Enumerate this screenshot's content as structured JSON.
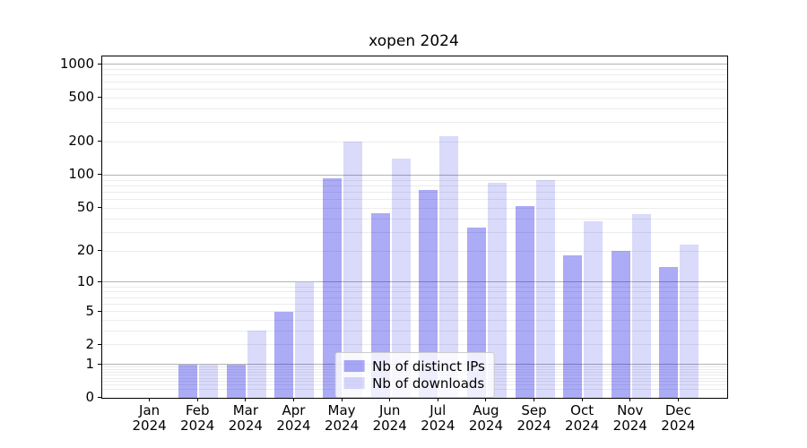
{
  "title": "xopen 2024",
  "chart_data": {
    "type": "bar",
    "title": "xopen 2024",
    "categories": [
      "Jan 2024",
      "Feb 2024",
      "Mar 2024",
      "Apr 2024",
      "May 2024",
      "Jun 2024",
      "Jul 2024",
      "Aug 2024",
      "Sep 2024",
      "Oct 2024",
      "Nov 2024",
      "Dec 2024"
    ],
    "series": [
      {
        "name": "Nb of distinct IPs",
        "color": "rgba(10,10,230,0.34)",
        "values": [
          0,
          1,
          1,
          5,
          93,
          45,
          73,
          33,
          52,
          18,
          20,
          14
        ]
      },
      {
        "name": "Nb of downloads",
        "color": "rgba(10,10,230,0.15)",
        "values": [
          0,
          1,
          3,
          10,
          200,
          140,
          225,
          85,
          90,
          38,
          44,
          23
        ]
      }
    ],
    "yscale": "log1p",
    "xlabel": "",
    "ylabel": "",
    "yticks": [
      0,
      1,
      2,
      5,
      10,
      20,
      50,
      100,
      200,
      500,
      1000
    ],
    "ytick_labels": [
      "0",
      "1",
      "2",
      "5",
      "10",
      "20",
      "50",
      "100",
      "200",
      "500",
      "1000"
    ],
    "ylim": [
      0,
      1180
    ],
    "grid": true,
    "major_gridlines": [
      1,
      10,
      100,
      1000
    ],
    "minor_gridlines": [
      0.2,
      0.3,
      0.4,
      0.5,
      0.6,
      0.7,
      0.8,
      0.9,
      2,
      3,
      4,
      5,
      6,
      7,
      8,
      9,
      20,
      30,
      40,
      50,
      60,
      70,
      80,
      90,
      200,
      300,
      400,
      500,
      600,
      700,
      800,
      900
    ],
    "legend_position": "lower center"
  },
  "colors": {
    "grid_minor": "#ececec",
    "grid_major": "#b3b3b3",
    "axis": "#000000",
    "bar_distinct_ips": "rgba(10,10,230,0.34)",
    "bar_downloads": "rgba(10,10,230,0.15)"
  },
  "legend": {
    "entries": [
      "Nb of distinct IPs",
      "Nb of downloads"
    ]
  }
}
